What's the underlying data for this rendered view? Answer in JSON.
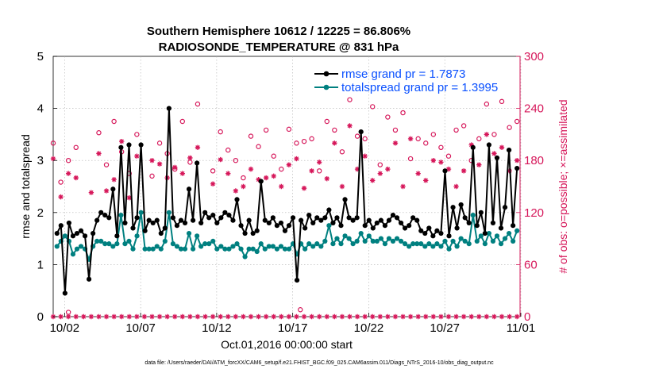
{
  "chart_data": {
    "type": "line",
    "title": "Southern Hemisphere 10612 / 12225 = 86.806%",
    "subtitle": "RADIOSONDE_TEMPERATURE @ 831 hPa",
    "xlabel": "Oct.01,2016 00:00:00 start",
    "ylabel_left": "rmse and totalspread",
    "ylabel_right": "# of obs: o=possible; ×=assimilated",
    "footer": "data file: /Users/raeder/DAI/ATM_forcXX/CAM6_setup/f.e21.FHIST_BGC.f09_025.CAM6assim.011/Diags_NTrS_2016-10/obs_diag_output.nc",
    "xlim": [
      0.5,
      31.2
    ],
    "ylim_left": [
      0,
      5
    ],
    "ylim_right": [
      0,
      300
    ],
    "x_ticks": [
      1.25,
      6.25,
      11.25,
      16.25,
      21.25,
      26.25,
      31.25
    ],
    "x_tick_labels": [
      "10/02",
      "10/07",
      "10/12",
      "10/17",
      "10/22",
      "10/27",
      "11/01"
    ],
    "y_ticks_left": [
      "0",
      "1",
      "2",
      "3",
      "4",
      "5"
    ],
    "y_ticks_right": [
      "0",
      "60",
      "120",
      "180",
      "240",
      "300"
    ],
    "legend": [
      {
        "name": "rmse grand pr = 1.7873",
        "color": "#000000"
      },
      {
        "name": "totalspread grand pr = 1.3995",
        "color": "#008080"
      }
    ],
    "colors": {
      "rmse": "#000000",
      "spread": "#008080",
      "obs": "#d6175a",
      "legend_text": "#0a50ff"
    },
    "series": [
      {
        "name": "rmse",
        "axis": "left",
        "values": [
          1.6,
          1.75,
          0.45,
          1.8,
          1.55,
          1.6,
          1.65,
          1.55,
          0.72,
          1.6,
          1.85,
          2.0,
          1.95,
          1.9,
          2.45,
          1.55,
          3.25,
          1.8,
          3.3,
          1.7,
          1.9,
          3.3,
          1.65,
          1.85,
          1.8,
          1.85,
          1.6,
          1.7,
          4.0,
          1.9,
          1.75,
          1.85,
          1.8,
          2.45,
          1.85,
          2.95,
          1.8,
          2.0,
          1.9,
          1.95,
          1.8,
          1.9,
          2.0,
          1.95,
          1.85,
          2.25,
          1.75,
          1.6,
          1.85,
          1.6,
          1.65,
          2.6,
          1.85,
          1.8,
          1.9,
          1.75,
          1.8,
          1.65,
          1.75,
          1.9,
          0.7,
          1.85,
          1.7,
          1.95,
          1.8,
          1.9,
          1.85,
          1.9,
          2.05,
          1.8,
          1.9,
          1.75,
          2.25,
          1.9,
          1.85,
          1.9,
          3.55,
          1.75,
          1.85,
          1.7,
          1.8,
          1.85,
          1.75,
          1.85,
          1.95,
          1.9,
          1.8,
          1.7,
          1.75,
          1.9,
          1.85,
          1.65,
          1.6,
          1.7,
          1.55,
          1.65,
          1.6,
          2.8,
          1.55,
          2.1,
          1.7,
          2.15,
          1.9,
          1.8,
          3.25,
          1.75,
          2.0,
          1.6,
          3.3,
          1.8,
          3.05,
          1.7,
          2.1,
          3.2,
          1.75,
          2.85
        ]
      },
      {
        "name": "totalspread",
        "axis": "left",
        "values": [
          1.35,
          1.45,
          1.55,
          1.45,
          1.2,
          1.3,
          1.35,
          1.3,
          1.1,
          1.35,
          1.45,
          1.45,
          1.4,
          1.4,
          1.35,
          1.4,
          1.95,
          1.4,
          1.45,
          1.3,
          1.55,
          2.0,
          1.3,
          1.3,
          1.3,
          1.35,
          1.3,
          1.45,
          2.0,
          1.4,
          1.35,
          1.3,
          1.3,
          1.6,
          1.3,
          1.55,
          1.35,
          1.4,
          1.4,
          1.45,
          1.3,
          1.35,
          1.3,
          1.3,
          1.35,
          1.4,
          1.3,
          1.15,
          1.3,
          1.3,
          1.25,
          1.4,
          1.3,
          1.35,
          1.35,
          1.3,
          1.35,
          1.3,
          1.3,
          1.4,
          1.2,
          1.4,
          1.3,
          1.4,
          1.35,
          1.4,
          1.35,
          1.45,
          1.75,
          1.4,
          1.5,
          1.4,
          1.55,
          1.5,
          1.4,
          1.45,
          1.6,
          1.45,
          1.55,
          1.45,
          1.45,
          1.5,
          1.4,
          1.5,
          1.45,
          1.5,
          1.45,
          1.4,
          1.35,
          1.4,
          1.4,
          1.4,
          1.35,
          1.4,
          1.35,
          1.4,
          1.35,
          1.45,
          1.3,
          1.45,
          1.35,
          1.5,
          1.45,
          1.4,
          1.95,
          1.45,
          1.55,
          1.4,
          1.6,
          1.45,
          1.55,
          1.4,
          1.5,
          1.6,
          1.45,
          1.65
        ]
      },
      {
        "name": "obs_possible",
        "axis": "right",
        "marker": "o",
        "x": [
          0.5,
          1.0,
          1.5,
          2.0,
          3.5,
          4.0,
          4.5,
          5.0,
          5.5,
          6.0,
          7.0,
          7.5,
          8.0,
          8.5,
          9.0,
          9.5,
          10.0,
          11.0,
          11.5,
          12.0,
          12.5,
          13.0,
          13.5,
          14.0,
          14.5,
          15.0,
          15.5,
          16.0,
          16.5,
          17.0,
          17.5,
          18.0,
          18.5,
          19.0,
          19.5,
          20.0,
          20.5,
          21.0,
          21.5,
          22.0,
          22.5,
          23.0,
          23.5,
          24.0,
          24.5,
          25.0,
          25.5,
          26.0,
          26.5,
          27.0,
          27.5,
          28.0,
          28.5,
          29.0,
          29.5,
          30.0,
          30.5,
          31.0
        ],
        "values": [
          200,
          155,
          180,
          195,
          212,
          175,
          225,
          190,
          165,
          210,
          162,
          200,
          188,
          170,
          225,
          178,
          245,
          168,
          213,
          192,
          180,
          160,
          208,
          196,
          215,
          185,
          170,
          216,
          200,
          202,
          205,
          168,
          225,
          215,
          190,
          250,
          208,
          205,
          242,
          175,
          230,
          215,
          235,
          182,
          205,
          200,
          210,
          195,
          185,
          215,
          220,
          180,
          205,
          245,
          210,
          248,
          218,
          225
        ],
        "baseline_x": [
          1.5,
          16.75
        ],
        "baseline_values": [
          5,
          8
        ]
      },
      {
        "name": "obs_assimilated",
        "axis": "right",
        "marker": "x",
        "x": [
          0.5,
          1.0,
          1.5,
          2.0,
          3.0,
          3.5,
          4.0,
          4.5,
          5.0,
          5.5,
          6.0,
          7.0,
          7.5,
          8.0,
          8.5,
          9.0,
          9.5,
          10.0,
          11.0,
          11.5,
          12.0,
          12.5,
          13.0,
          13.5,
          14.0,
          14.5,
          15.0,
          15.5,
          16.0,
          16.5,
          17.0,
          17.5,
          18.0,
          18.5,
          19.0,
          19.5,
          20.0,
          20.5,
          21.0,
          21.5,
          22.0,
          22.5,
          23.0,
          23.5,
          24.0,
          24.5,
          25.0,
          25.5,
          26.0,
          26.5,
          27.0,
          27.5,
          28.0,
          28.5,
          29.0,
          29.5,
          30.0,
          30.5,
          31.0
        ],
        "values": [
          182,
          138,
          165,
          160,
          143,
          188,
          145,
          158,
          202,
          137,
          185,
          180,
          176,
          160,
          172,
          165,
          183,
          195,
          153,
          181,
          165,
          145,
          150,
          170,
          158,
          160,
          162,
          150,
          175,
          182,
          148,
          168,
          178,
          159,
          200,
          150,
          220,
          170,
          185,
          157,
          165,
          170,
          200,
          150,
          205,
          165,
          157,
          180,
          178,
          170,
          150,
          168,
          198,
          175,
          210,
          188,
          195,
          168,
          180
        ]
      }
    ]
  }
}
